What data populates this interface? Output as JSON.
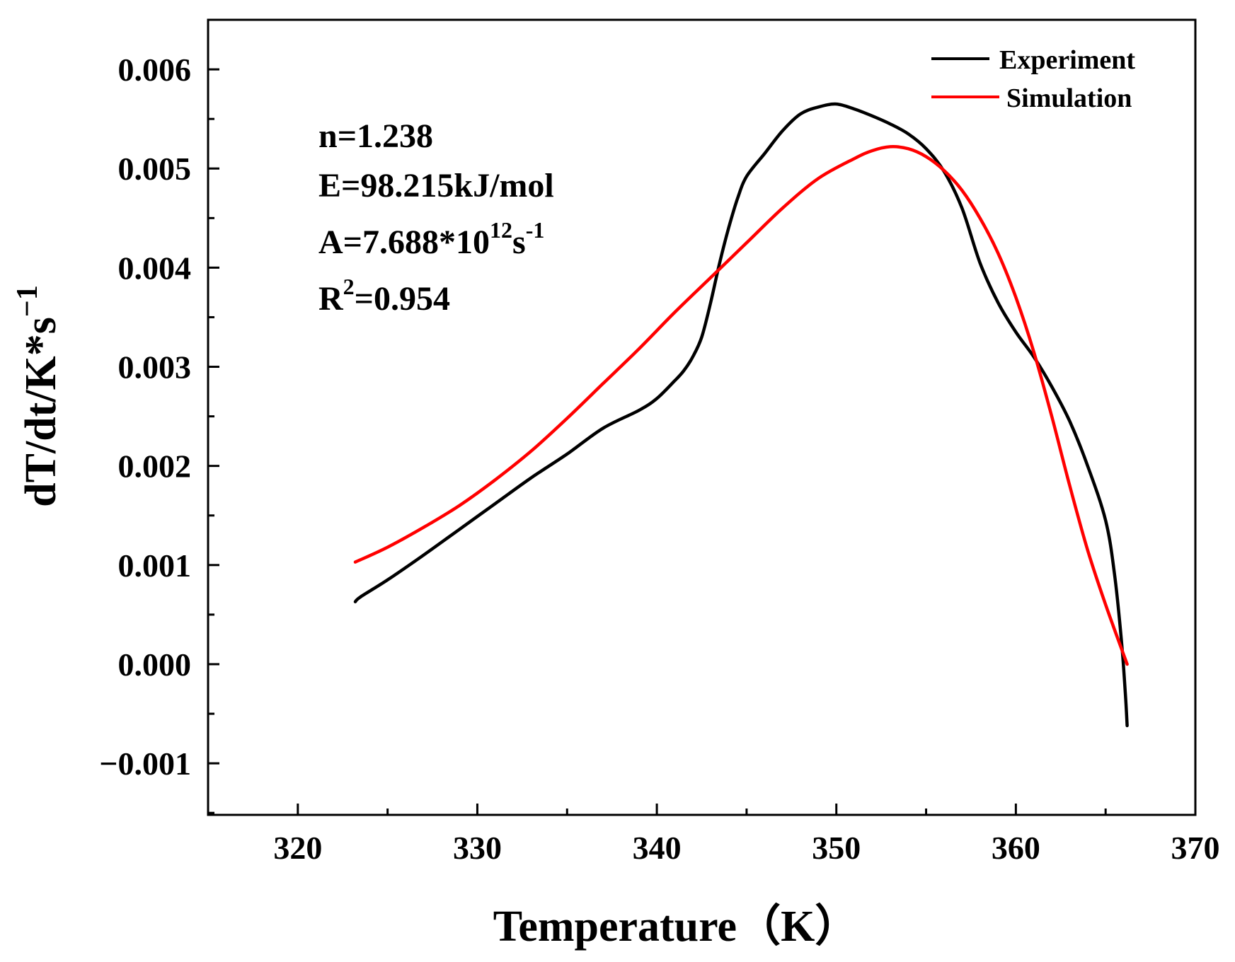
{
  "chart_data": {
    "type": "line",
    "title": "",
    "xlabel": "Temperature（K）",
    "ylabel": "dT/dt/K*s",
    "ylabel_sup": "−1",
    "xlim": [
      315,
      370
    ],
    "ylim": [
      -0.00152,
      0.0065
    ],
    "x_ticks": [
      {
        "value": 320,
        "label": "320"
      },
      {
        "value": 330,
        "label": "330"
      },
      {
        "value": 340,
        "label": "340"
      },
      {
        "value": 350,
        "label": "350"
      },
      {
        "value": 360,
        "label": "360"
      },
      {
        "value": 370,
        "label": "370"
      }
    ],
    "y_ticks": [
      {
        "value": -0.001,
        "label": "−0.001"
      },
      {
        "value": 0.0,
        "label": "0.000"
      },
      {
        "value": 0.001,
        "label": "0.001"
      },
      {
        "value": 0.002,
        "label": "0.002"
      },
      {
        "value": 0.003,
        "label": "0.003"
      },
      {
        "value": 0.004,
        "label": "0.004"
      },
      {
        "value": 0.005,
        "label": "0.005"
      },
      {
        "value": 0.006,
        "label": "0.006"
      }
    ],
    "grid": false,
    "legend_position": "top-right",
    "series": [
      {
        "name": "Experiment",
        "color": "#000000",
        "x": [
          323.2,
          323.5,
          325,
          327,
          329,
          331,
          333,
          335,
          337,
          339,
          340,
          341,
          341.5,
          342,
          342.5,
          343,
          343.5,
          344,
          344.5,
          345,
          346,
          347,
          348,
          349,
          350,
          351,
          352,
          353,
          354,
          355,
          356,
          357,
          358,
          359,
          360,
          361,
          362,
          363,
          364,
          365,
          365.5,
          365.9,
          366.1,
          366.2
        ],
        "y": [
          0.00063,
          0.00068,
          0.00085,
          0.0011,
          0.00136,
          0.00162,
          0.00188,
          0.00212,
          0.00238,
          0.00256,
          0.00268,
          0.00286,
          0.00296,
          0.0031,
          0.0033,
          0.00365,
          0.00405,
          0.0044,
          0.0047,
          0.00492,
          0.00515,
          0.00538,
          0.00555,
          0.00562,
          0.00565,
          0.0056,
          0.00553,
          0.00545,
          0.00535,
          0.0052,
          0.00497,
          0.0046,
          0.00405,
          0.00365,
          0.00335,
          0.0031,
          0.0028,
          0.00245,
          0.002,
          0.00145,
          0.0009,
          0.0002,
          -0.0003,
          -0.00062
        ]
      },
      {
        "name": "Simulation",
        "color": "#ff0000",
        "x": [
          323.2,
          325,
          327,
          329,
          331,
          333,
          335,
          337,
          339,
          341,
          343,
          345,
          347,
          349,
          351,
          352,
          353,
          354,
          355,
          356,
          357,
          358,
          359,
          360,
          361,
          362,
          363,
          364,
          365,
          366.2
        ],
        "y": [
          0.00103,
          0.00118,
          0.00138,
          0.0016,
          0.00186,
          0.00215,
          0.00248,
          0.00283,
          0.00318,
          0.00355,
          0.0039,
          0.00425,
          0.0046,
          0.0049,
          0.0051,
          0.00518,
          0.00522,
          0.0052,
          0.00512,
          0.00498,
          0.00478,
          0.0045,
          0.00415,
          0.0037,
          0.00315,
          0.0025,
          0.0018,
          0.00115,
          0.0006,
          0.0
        ]
      }
    ],
    "annotations": {
      "n": "n=1.238",
      "E": "E=98.215kJ/mol",
      "A_prefix": "A=7.688*10",
      "A_exp": "12",
      "A_unit": "s",
      "A_unit_exp": "-1",
      "R_prefix": "R",
      "R_exp": "2",
      "R_value": "=0.954"
    }
  }
}
